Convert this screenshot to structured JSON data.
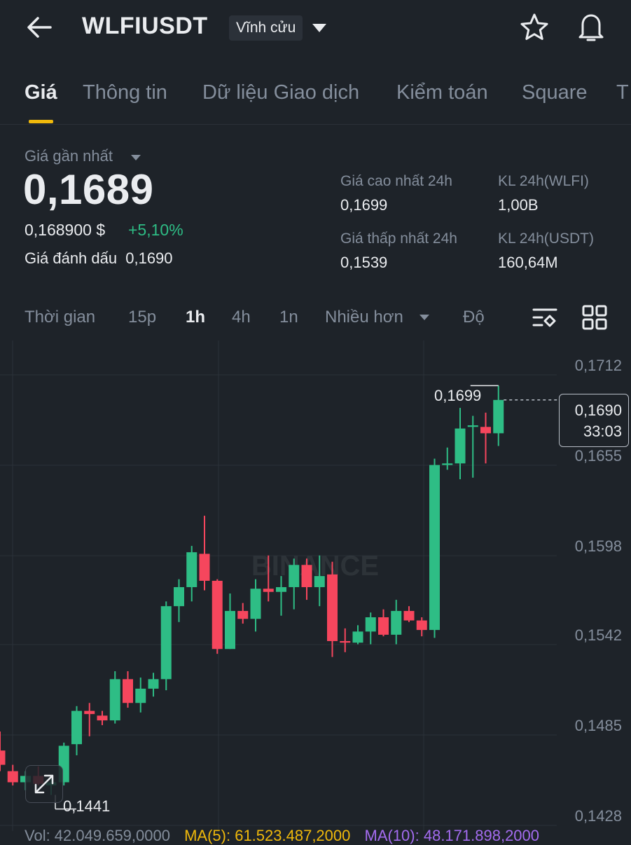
{
  "header": {
    "symbol": "WLFIUSDT",
    "contract_type": "Vĩnh cửu"
  },
  "tabs": [
    {
      "label": "Giá",
      "active": true
    },
    {
      "label": "Thông tin"
    },
    {
      "label": "Dữ liệu Giao dịch"
    },
    {
      "label": "Kiểm toán"
    },
    {
      "label": "Square"
    },
    {
      "label": "T"
    }
  ],
  "price": {
    "last_label": "Giá gần nhất",
    "last_price": "0,1689",
    "usd_price": "0,168900 $",
    "change": "+5,10%",
    "mark_label": "Giá đánh dấu",
    "mark_price": "0,1690",
    "change_color": "#2ebd85"
  },
  "stats": {
    "high_label": "Giá cao nhất 24h",
    "high_value": "0,1699",
    "vol_base_label": "KL 24h(WLFI)",
    "vol_base_value": "1,00B",
    "low_label": "Giá thấp nhất 24h",
    "low_value": "0,1539",
    "vol_quote_label": "KL 24h(USDT)",
    "vol_quote_value": "160,64M"
  },
  "intervals": {
    "time_label": "Thời gian",
    "items": [
      "15p",
      "1h",
      "4h",
      "1n"
    ],
    "active": "1h",
    "more_label": "Nhiều hơn",
    "depth_label": "Độ"
  },
  "chart_data": {
    "type": "candlestick",
    "interval": "1h",
    "y_ticks": [
      "0,1712",
      "0,1655",
      "0,1598",
      "0,1542",
      "0,1485",
      "0,1428"
    ],
    "ylim": [
      0.1428,
      0.1712
    ],
    "watermark": "BINANCE",
    "high_marker": "0,1699",
    "low_marker": "0,1441",
    "current_price": "0,1690",
    "countdown": "33:03",
    "up_color": "#2ebd85",
    "down_color": "#f6465d",
    "candles": [
      {
        "o": 0.1469,
        "h": 0.1481,
        "l": 0.1456,
        "c": 0.146
      },
      {
        "o": 0.1456,
        "h": 0.146,
        "l": 0.1447,
        "c": 0.1449
      },
      {
        "o": 0.1449,
        "h": 0.1456,
        "l": 0.1444,
        "c": 0.1453
      },
      {
        "o": 0.1453,
        "h": 0.1459,
        "l": 0.1447,
        "c": 0.1448
      },
      {
        "o": 0.1447,
        "h": 0.1451,
        "l": 0.1441,
        "c": 0.1449
      },
      {
        "o": 0.1449,
        "h": 0.1474,
        "l": 0.1447,
        "c": 0.1472
      },
      {
        "o": 0.1473,
        "h": 0.1497,
        "l": 0.1466,
        "c": 0.1494
      },
      {
        "o": 0.1494,
        "h": 0.1499,
        "l": 0.1478,
        "c": 0.1492
      },
      {
        "o": 0.1491,
        "h": 0.1494,
        "l": 0.1485,
        "c": 0.1488
      },
      {
        "o": 0.1488,
        "h": 0.1519,
        "l": 0.1486,
        "c": 0.1514
      },
      {
        "o": 0.1514,
        "h": 0.1519,
        "l": 0.1496,
        "c": 0.1499
      },
      {
        "o": 0.1499,
        "h": 0.1515,
        "l": 0.1493,
        "c": 0.1508
      },
      {
        "o": 0.1508,
        "h": 0.1518,
        "l": 0.1503,
        "c": 0.1514
      },
      {
        "o": 0.1514,
        "h": 0.1563,
        "l": 0.1507,
        "c": 0.156
      },
      {
        "o": 0.156,
        "h": 0.1577,
        "l": 0.155,
        "c": 0.1572
      },
      {
        "o": 0.1572,
        "h": 0.1598,
        "l": 0.1563,
        "c": 0.1594
      },
      {
        "o": 0.1593,
        "h": 0.1617,
        "l": 0.157,
        "c": 0.1576
      },
      {
        "o": 0.1576,
        "h": 0.1577,
        "l": 0.153,
        "c": 0.1533
      },
      {
        "o": 0.1533,
        "h": 0.1568,
        "l": 0.1533,
        "c": 0.1557
      },
      {
        "o": 0.1557,
        "h": 0.1562,
        "l": 0.1549,
        "c": 0.1552
      },
      {
        "o": 0.1552,
        "h": 0.1577,
        "l": 0.1544,
        "c": 0.1571
      },
      {
        "o": 0.1571,
        "h": 0.1592,
        "l": 0.1563,
        "c": 0.1569
      },
      {
        "o": 0.1569,
        "h": 0.1579,
        "l": 0.1554,
        "c": 0.1572
      },
      {
        "o": 0.1572,
        "h": 0.159,
        "l": 0.1558,
        "c": 0.1586
      },
      {
        "o": 0.1586,
        "h": 0.159,
        "l": 0.1564,
        "c": 0.1572
      },
      {
        "o": 0.1572,
        "h": 0.1592,
        "l": 0.156,
        "c": 0.1579
      },
      {
        "o": 0.158,
        "h": 0.1588,
        "l": 0.1528,
        "c": 0.1538
      },
      {
        "o": 0.1538,
        "h": 0.1546,
        "l": 0.1531,
        "c": 0.1537
      },
      {
        "o": 0.1537,
        "h": 0.1548,
        "l": 0.1536,
        "c": 0.1544
      },
      {
        "o": 0.1544,
        "h": 0.1556,
        "l": 0.1536,
        "c": 0.1553
      },
      {
        "o": 0.1553,
        "h": 0.1558,
        "l": 0.1541,
        "c": 0.1542
      },
      {
        "o": 0.1542,
        "h": 0.1564,
        "l": 0.1536,
        "c": 0.1557
      },
      {
        "o": 0.1557,
        "h": 0.156,
        "l": 0.155,
        "c": 0.1551
      },
      {
        "o": 0.1551,
        "h": 0.1553,
        "l": 0.1541,
        "c": 0.1545
      },
      {
        "o": 0.1545,
        "h": 0.1653,
        "l": 0.154,
        "c": 0.1649
      },
      {
        "o": 0.1649,
        "h": 0.166,
        "l": 0.1646,
        "c": 0.165
      },
      {
        "o": 0.165,
        "h": 0.1685,
        "l": 0.164,
        "c": 0.1672
      },
      {
        "o": 0.1673,
        "h": 0.168,
        "l": 0.1641,
        "c": 0.1674
      },
      {
        "o": 0.1673,
        "h": 0.1682,
        "l": 0.165,
        "c": 0.1669
      },
      {
        "o": 0.1669,
        "h": 0.1699,
        "l": 0.1661,
        "c": 0.169
      }
    ]
  },
  "volume": {
    "vol_text": "Vol: 42.049.659,0000",
    "ma5_text": "MA(5): 61.523.487,2000",
    "ma10_text": "MA(10): 48.171.898,2000",
    "vol_color": "#848e9c",
    "ma5_color": "#f0b90b",
    "ma10_color": "#a46cf0"
  }
}
